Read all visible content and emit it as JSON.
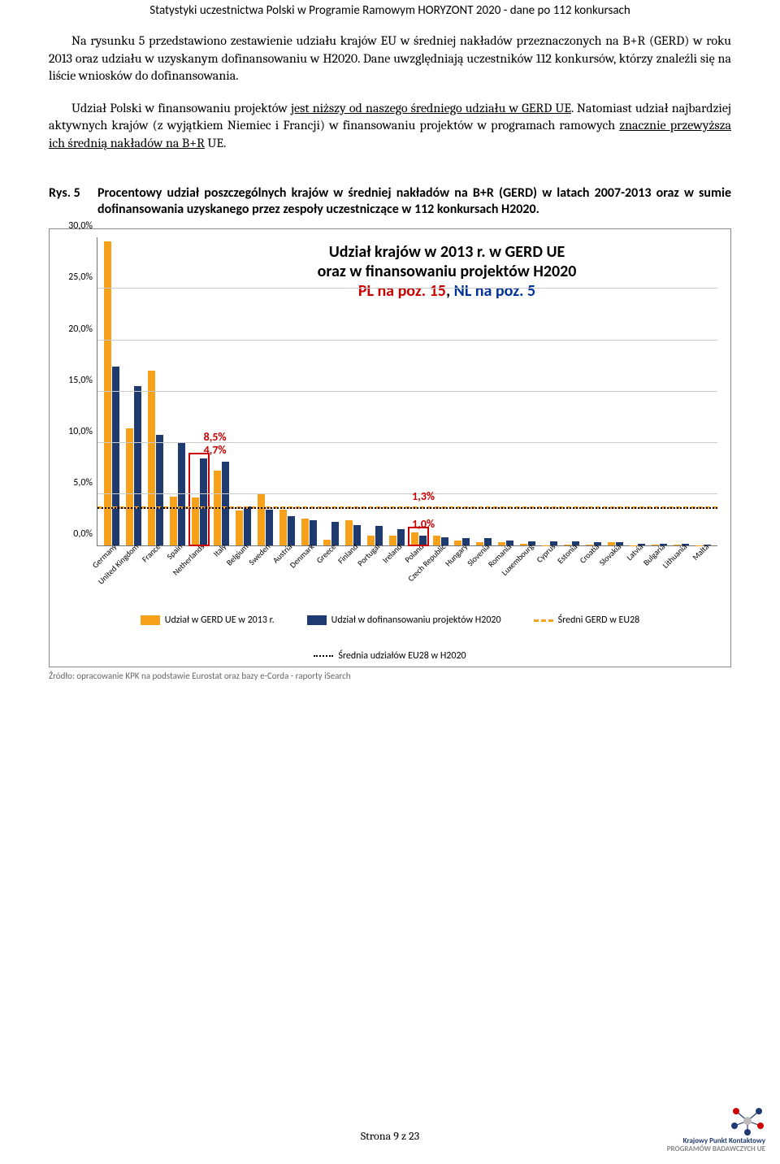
{
  "header": "Statystyki uczestnictwa Polski w Programie Ramowym HORYZONT 2020 - dane po 112 konkursach",
  "para1_a": "Na rysunku 5 przedstawiono zestawienie udziału krajów EU w średniej nakładów przeznaczonych na B+R (GERD) w roku 2013 oraz udziału w uzyskanym dofinansowaniu w H2020. Dane uwzględniają uczestników 112 konkursów, którzy znaleźli się na liście wniosków do dofinansowania.",
  "para2_a": "Udział Polski w finansowaniu projektów ",
  "para2_u1": "jest niższy od naszego średniego udziału w GERD UE",
  "para2_b": ". Natomiast udział najbardziej aktywnych krajów (z wyjątkiem Niemiec i Francji) w finansowaniu projektów w programach ramowych ",
  "para2_u2": "znacznie przewyższa ich średnią nakładów na B+R",
  "para2_c": " UE.",
  "fig_label": "Rys. 5",
  "fig_caption": "Procentowy udział poszczególnych krajów w średniej nakładów na B+R (GERD) w latach 2007-2013 oraz w sumie dofinansowania uzyskanego przez zespoły uczestniczące w 112 konkursach H2020.",
  "chart": {
    "title_l1": "Udział krajów w 2013 r. w GERD UE",
    "title_l2": "oraz w finansowaniu projektów H2020",
    "title_l3_a": "PL na poz. 15",
    "title_l3_b": ", ",
    "title_l3_c": "NL na poz. 5",
    "ymax": 30.0,
    "yticks": [
      0.0,
      5.0,
      10.0,
      15.0,
      20.0,
      25.0,
      30.0
    ],
    "ytick_labels": [
      "0,0%",
      "5,0%",
      "10,0%",
      "15,0%",
      "20,0%",
      "25,0%",
      "30,0%"
    ],
    "avg_orange": 3.57,
    "avg_black": 3.57,
    "categories": [
      "Germany",
      "United Kingdom",
      "France",
      "Spain",
      "Netherlands",
      "Italy",
      "Belgium",
      "Sweden",
      "Austria",
      "Denmark",
      "Greece",
      "Finland",
      "Portugal",
      "Ireland",
      "Poland",
      "Czech Republic",
      "Hungary",
      "Slovenia",
      "Romania",
      "Luxembourg",
      "Cyprus",
      "Estonia",
      "Croatia",
      "Slovakia",
      "Latvia",
      "Bulgaria",
      "Lithuania",
      "Malta"
    ],
    "gerd": [
      29.6,
      11.4,
      17.0,
      4.8,
      4.7,
      7.3,
      3.4,
      5.0,
      3.5,
      2.6,
      0.6,
      2.5,
      1.0,
      1.0,
      1.3,
      1.0,
      0.5,
      0.3,
      0.3,
      0.2,
      0.03,
      0.1,
      0.1,
      0.3,
      0.05,
      0.1,
      0.1,
      0.03
    ],
    "h2020": [
      17.4,
      15.5,
      10.8,
      10.0,
      8.5,
      8.2,
      3.8,
      3.5,
      2.9,
      2.5,
      2.3,
      2.0,
      1.9,
      1.6,
      1.0,
      0.8,
      0.7,
      0.7,
      0.5,
      0.4,
      0.4,
      0.4,
      0.3,
      0.3,
      0.2,
      0.2,
      0.2,
      0.1
    ],
    "highlight_nl_idx": 4,
    "highlight_pl_idx": 14,
    "annot_nl_gerd": "4,7%",
    "annot_nl_h2020": "8,5%",
    "annot_pl_gerd": "1,3%",
    "annot_pl_h2020": "1,0%",
    "color_orange": "#f7a11a",
    "color_navy": "#1f3a6e",
    "color_red": "#cc0000"
  },
  "legend": {
    "l1": "Udział w GERD UE w 2013 r.",
    "l2": "Udział w dofinansowaniu projektów H2020",
    "l3": "Średni GERD w EU28",
    "l4": "Średnia udziałów EU28 w H2020"
  },
  "source": "Źródło: opracowanie KPK na podstawie Eurostat oraz bazy e-Corda  - raporty iSearch",
  "footer": "Strona 9 z 23",
  "logo": {
    "l1": "Krajowy Punkt Kontaktowy",
    "l2": "PROGRAMÓW BADAWCZYCH UE"
  }
}
